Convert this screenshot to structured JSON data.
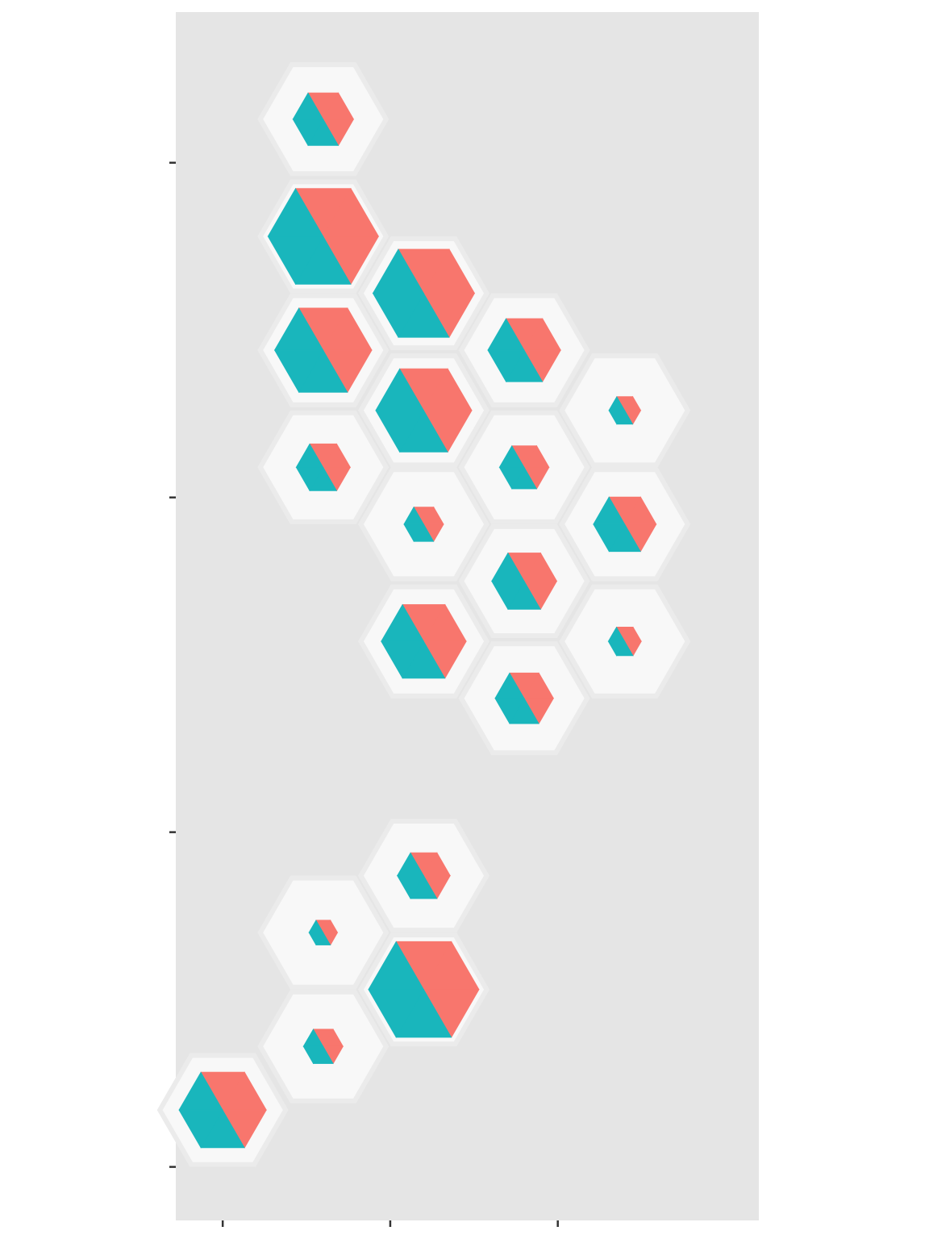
{
  "colors": {
    "panel": "#e5e5e5",
    "hex_bg": "#f8f8f8",
    "hex_border": "#ebebeb",
    "fill_a": "#f8766d",
    "fill_b": "#19b6bc",
    "tick": "#333333"
  },
  "chart_data": {
    "type": "hexbin-pie",
    "title": "",
    "xlabel": "",
    "ylabel": "",
    "xlim": [
      0.72,
      4.2
    ],
    "ylim": [
      -0.16,
      3.45
    ],
    "x_ticks": [
      1,
      2,
      3
    ],
    "y_ticks": [
      0,
      1,
      2,
      3
    ],
    "x_tick_labels": [
      "",
      "",
      ""
    ],
    "y_tick_labels": [
      "",
      "",
      "",
      ""
    ],
    "grid": false,
    "legend": "none",
    "series": [
      {
        "name": "",
        "color_key": "fill_a"
      },
      {
        "name": "",
        "color_key": "fill_b"
      }
    ],
    "cells": [
      {
        "x": 1.6,
        "y": 3.13,
        "size": 0.55,
        "share_a": 0.5
      },
      {
        "x": 1.6,
        "y": 2.78,
        "size": 1.0,
        "share_a": 0.5
      },
      {
        "x": 2.2,
        "y": 2.61,
        "size": 0.92,
        "share_a": 0.5
      },
      {
        "x": 1.6,
        "y": 2.44,
        "size": 0.88,
        "share_a": 0.5
      },
      {
        "x": 2.8,
        "y": 2.44,
        "size": 0.66,
        "share_a": 0.5
      },
      {
        "x": 2.2,
        "y": 2.26,
        "size": 0.87,
        "share_a": 0.5
      },
      {
        "x": 3.4,
        "y": 2.26,
        "size": 0.29,
        "share_a": 0.5
      },
      {
        "x": 1.6,
        "y": 2.09,
        "size": 0.49,
        "share_a": 0.5
      },
      {
        "x": 2.8,
        "y": 2.09,
        "size": 0.45,
        "share_a": 0.5
      },
      {
        "x": 2.2,
        "y": 1.92,
        "size": 0.36,
        "share_a": 0.5
      },
      {
        "x": 3.4,
        "y": 1.92,
        "size": 0.57,
        "share_a": 0.5
      },
      {
        "x": 2.8,
        "y": 1.75,
        "size": 0.59,
        "share_a": 0.5
      },
      {
        "x": 2.2,
        "y": 1.57,
        "size": 0.77,
        "share_a": 0.5
      },
      {
        "x": 3.4,
        "y": 1.57,
        "size": 0.3,
        "share_a": 0.5
      },
      {
        "x": 2.8,
        "y": 1.4,
        "size": 0.53,
        "share_a": 0.5
      },
      {
        "x": 2.2,
        "y": 0.87,
        "size": 0.48,
        "share_a": 0.5
      },
      {
        "x": 1.6,
        "y": 0.7,
        "size": 0.26,
        "share_a": 0.5
      },
      {
        "x": 2.2,
        "y": 0.53,
        "size": 1.0,
        "share_a": 0.5
      },
      {
        "x": 1.6,
        "y": 0.36,
        "size": 0.36,
        "share_a": 0.5
      },
      {
        "x": 1.0,
        "y": 0.17,
        "size": 0.79,
        "share_a": 0.5
      }
    ]
  }
}
